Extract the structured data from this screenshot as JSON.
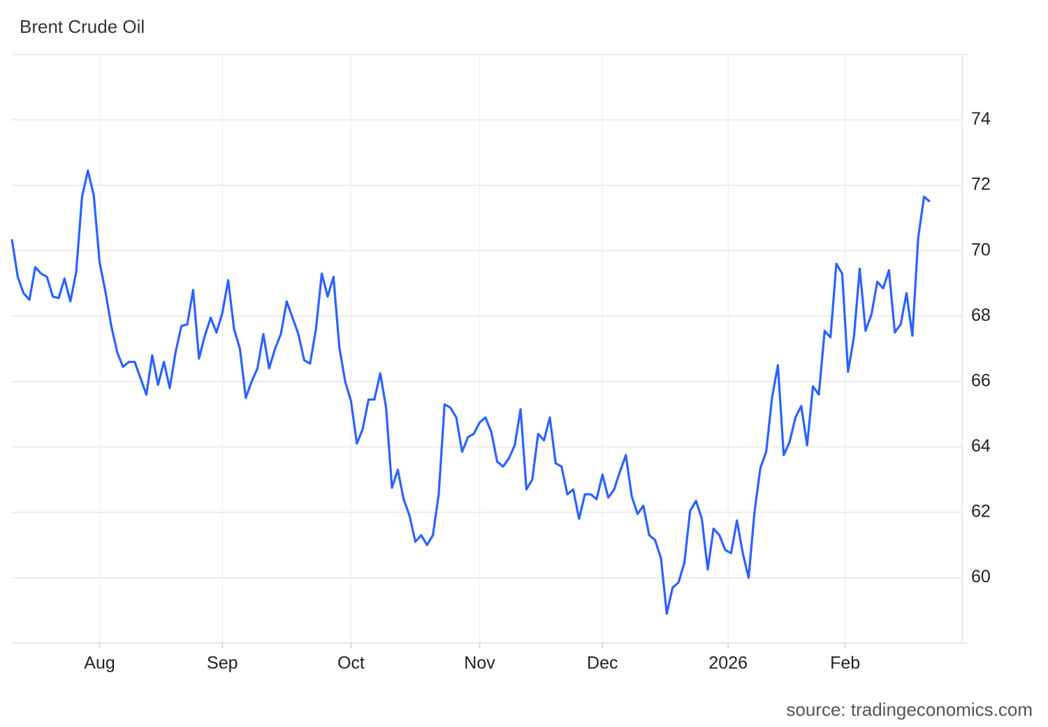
{
  "chart_data": {
    "type": "line",
    "title": "Brent Crude Oil",
    "source": "source: tradingeconomics.com",
    "series": [
      {
        "name": "Brent Crude Oil",
        "color": "#2962ff",
        "values": [
          70.35,
          69.2,
          68.7,
          68.5,
          69.5,
          69.3,
          69.2,
          68.6,
          68.55,
          69.15,
          68.45,
          69.35,
          71.65,
          72.45,
          71.7,
          69.65,
          68.75,
          67.7,
          66.9,
          66.45,
          66.6,
          66.6,
          66.1,
          65.6,
          66.8,
          65.9,
          66.6,
          65.8,
          66.9,
          67.7,
          67.75,
          68.8,
          66.7,
          67.4,
          67.95,
          67.5,
          68.1,
          69.1,
          67.6,
          67.0,
          65.5,
          66.0,
          66.4,
          67.45,
          66.4,
          67.0,
          67.45,
          68.45,
          67.95,
          67.45,
          66.65,
          66.55,
          67.6,
          69.3,
          68.6,
          69.2,
          67.05,
          66.0,
          65.4,
          64.1,
          64.55,
          65.45,
          65.45,
          66.25,
          65.2,
          62.75,
          63.3,
          62.4,
          61.9,
          61.1,
          61.3,
          61.0,
          61.3,
          62.55,
          65.3,
          65.2,
          64.9,
          63.85,
          64.3,
          64.4,
          64.75,
          64.9,
          64.45,
          63.55,
          63.4,
          63.65,
          64.05,
          65.15,
          62.7,
          63.0,
          64.4,
          64.2,
          64.9,
          63.5,
          63.4,
          62.55,
          62.7,
          61.8,
          62.55,
          62.55,
          62.4,
          63.15,
          62.45,
          62.7,
          63.25,
          63.75,
          62.5,
          61.95,
          62.2,
          61.3,
          61.15,
          60.6,
          58.9,
          59.7,
          59.85,
          60.45,
          62.05,
          62.35,
          61.8,
          60.25,
          61.5,
          61.3,
          60.85,
          60.75,
          61.75,
          60.75,
          60.0,
          62.0,
          63.35,
          63.85,
          65.5,
          66.5,
          63.75,
          64.15,
          64.9,
          65.25,
          64.05,
          65.85,
          65.6,
          67.55,
          67.35,
          69.6,
          69.3,
          66.3,
          67.35,
          69.45,
          67.55,
          68.05,
          69.05,
          68.85,
          69.4,
          67.5,
          67.75,
          68.7,
          67.4,
          70.4,
          71.65,
          71.5
        ]
      }
    ],
    "xlim": [
      0,
      162.5
    ],
    "xticks": [
      {
        "value": 15,
        "label": "Aug"
      },
      {
        "value": 36,
        "label": "Sep"
      },
      {
        "value": 58,
        "label": "Oct"
      },
      {
        "value": 80,
        "label": "Nov"
      },
      {
        "value": 101,
        "label": "Dec"
      },
      {
        "value": 122.5,
        "label": "2026"
      },
      {
        "value": 142.5,
        "label": "Feb"
      }
    ],
    "ylim": [
      58,
      76
    ],
    "yticks": [
      60,
      62,
      64,
      66,
      68,
      70,
      72,
      74
    ],
    "grid": true
  }
}
